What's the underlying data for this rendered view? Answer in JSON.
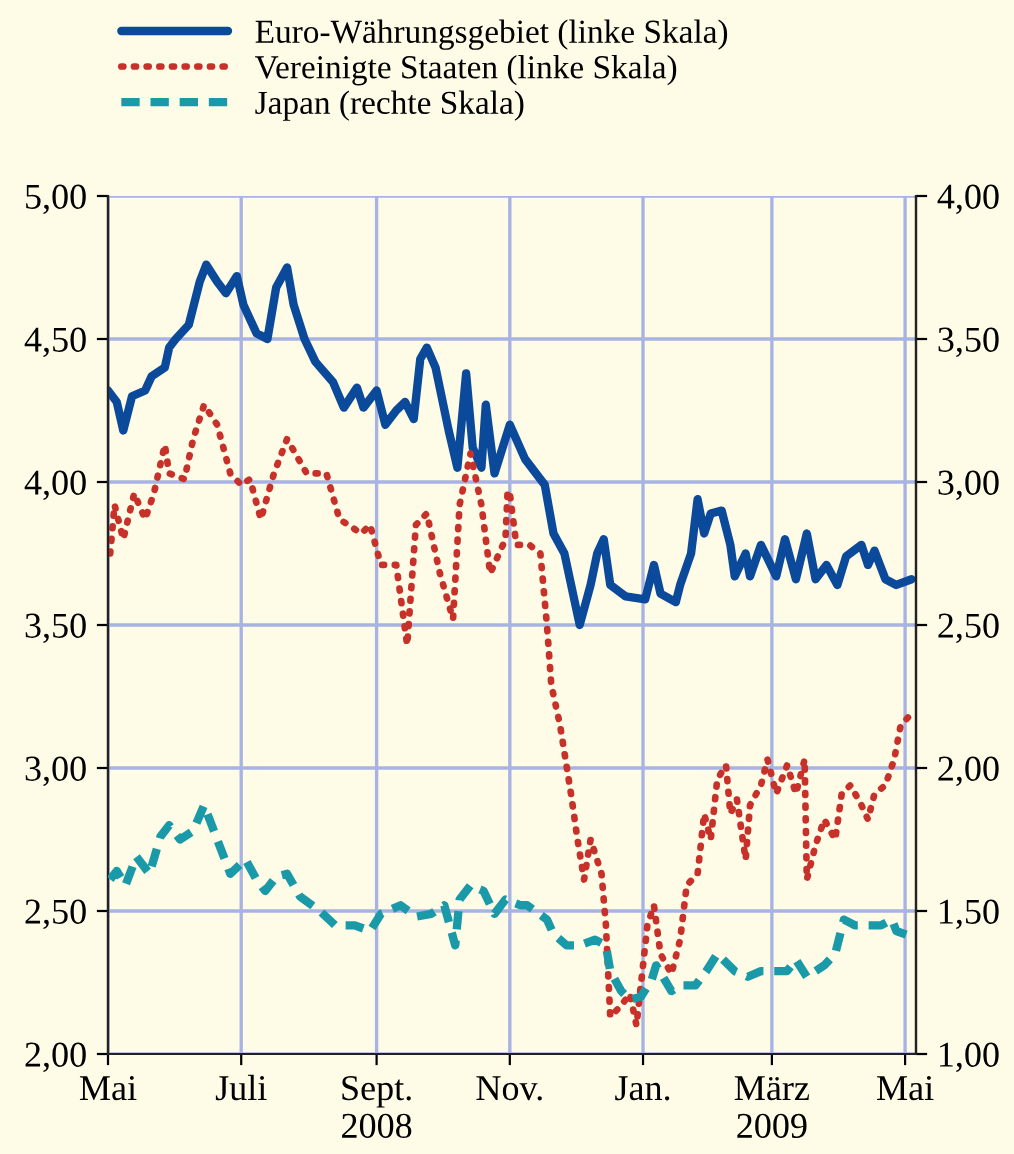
{
  "chart_data": {
    "type": "line",
    "xlim": [
      "2008-05-01",
      "2009-05-06"
    ],
    "xticks": [
      {
        "value": "2008-05-01",
        "label": "Mai"
      },
      {
        "value": "2008-07-01",
        "label": "Juli"
      },
      {
        "value": "2008-09-01",
        "label": "Sept.\n2008"
      },
      {
        "value": "2008-11-01",
        "label": "Nov."
      },
      {
        "value": "2009-01-01",
        "label": "Jan."
      },
      {
        "value": "2009-03-01",
        "label": "März\n2009"
      },
      {
        "value": "2009-05-01",
        "label": "Mai"
      }
    ],
    "ylim": [
      2.0,
      5.0
    ],
    "yticks": [
      {
        "value": 2.0,
        "label": "2,00"
      },
      {
        "value": 2.5,
        "label": "2,50"
      },
      {
        "value": 3.0,
        "label": "3,00"
      },
      {
        "value": 3.5,
        "label": "3,50"
      },
      {
        "value": 4.0,
        "label": "4,00"
      },
      {
        "value": 4.5,
        "label": "4,50"
      },
      {
        "value": 5.0,
        "label": "5,00"
      }
    ],
    "y2lim": [
      1.0,
      4.0
    ],
    "y2ticks": [
      {
        "value": 1.0,
        "label": "1,00"
      },
      {
        "value": 1.5,
        "label": "1,50"
      },
      {
        "value": 2.0,
        "label": "2,00"
      },
      {
        "value": 2.5,
        "label": "2,50"
      },
      {
        "value": 3.0,
        "label": "3,00"
      },
      {
        "value": 3.5,
        "label": "3,50"
      },
      {
        "value": 4.0,
        "label": "4,00"
      }
    ],
    "grid": true,
    "legend": "top",
    "series": [
      {
        "name": "Euro-Währungsgebiet (linke Skala)",
        "color": "#0b4a9b",
        "line_style": "solid",
        "x": [
          "2008-05-01",
          "2008-05-05",
          "2008-05-08",
          "2008-05-12",
          "2008-05-18",
          "2008-05-21",
          "2008-05-27",
          "2008-05-29",
          "2008-06-01",
          "2008-06-07",
          "2008-06-12",
          "2008-06-15",
          "2008-06-20",
          "2008-06-24",
          "2008-06-29",
          "2008-07-02",
          "2008-07-08",
          "2008-07-13",
          "2008-07-17",
          "2008-07-22",
          "2008-07-25",
          "2008-07-30",
          "2008-08-04",
          "2008-08-12",
          "2008-08-17",
          "2008-08-23",
          "2008-08-26",
          "2008-09-01",
          "2008-09-05",
          "2008-09-10",
          "2008-09-14",
          "2008-09-18",
          "2008-09-21",
          "2008-09-24",
          "2008-09-28",
          "2008-10-04",
          "2008-10-08",
          "2008-10-12",
          "2008-10-15",
          "2008-10-19",
          "2008-10-21",
          "2008-10-25",
          "2008-11-01",
          "2008-11-08",
          "2008-11-17",
          "2008-11-21",
          "2008-11-26",
          "2008-12-03",
          "2008-12-08",
          "2008-12-11",
          "2008-12-14",
          "2008-12-17",
          "2008-12-24",
          "2009-01-02",
          "2009-01-06",
          "2009-01-09",
          "2009-01-16",
          "2009-01-18",
          "2009-01-23",
          "2009-01-26",
          "2009-01-29",
          "2009-02-01",
          "2009-02-06",
          "2009-02-10",
          "2009-02-12",
          "2009-02-17",
          "2009-02-19",
          "2009-02-24",
          "2009-03-03",
          "2009-03-07",
          "2009-03-12",
          "2009-03-17",
          "2009-03-21",
          "2009-03-26",
          "2009-03-31",
          "2009-04-04",
          "2009-04-11",
          "2009-04-14",
          "2009-04-17",
          "2009-04-22",
          "2009-04-27",
          "2009-05-04"
        ],
        "values": [
          4.32,
          4.28,
          4.18,
          4.3,
          4.32,
          4.37,
          4.4,
          4.47,
          4.5,
          4.55,
          4.7,
          4.76,
          4.7,
          4.66,
          4.72,
          4.62,
          4.52,
          4.5,
          4.68,
          4.75,
          4.62,
          4.5,
          4.42,
          4.35,
          4.26,
          4.33,
          4.26,
          4.32,
          4.2,
          4.25,
          4.28,
          4.22,
          4.43,
          4.47,
          4.4,
          4.18,
          4.05,
          4.38,
          4.12,
          4.05,
          4.27,
          4.03,
          4.2,
          4.08,
          3.99,
          3.82,
          3.75,
          3.5,
          3.64,
          3.75,
          3.8,
          3.64,
          3.6,
          3.59,
          3.71,
          3.61,
          3.58,
          3.64,
          3.75,
          3.94,
          3.82,
          3.89,
          3.9,
          3.78,
          3.67,
          3.75,
          3.67,
          3.78,
          3.67,
          3.8,
          3.66,
          3.82,
          3.66,
          3.71,
          3.64,
          3.74,
          3.78,
          3.71,
          3.76,
          3.66,
          3.64,
          3.66
        ]
      },
      {
        "name": "Vereinigte Staaten (linke Skala)",
        "color": "#c8312a",
        "line_style": "dotted",
        "x": [
          "2008-05-02",
          "2008-05-04",
          "2008-05-08",
          "2008-05-13",
          "2008-05-18",
          "2008-05-22",
          "2008-05-27",
          "2008-05-29",
          "2008-06-05",
          "2008-06-09",
          "2008-06-14",
          "2008-06-20",
          "2008-06-26",
          "2008-07-01",
          "2008-07-05",
          "2008-07-10",
          "2008-07-16",
          "2008-07-22",
          "2008-07-31",
          "2008-08-09",
          "2008-08-15",
          "2008-08-25",
          "2008-08-29",
          "2008-09-03",
          "2008-09-10",
          "2008-09-15",
          "2008-09-19",
          "2008-09-24",
          "2008-09-30",
          "2008-10-06",
          "2008-10-09",
          "2008-10-14",
          "2008-10-19",
          "2008-10-23",
          "2008-10-30",
          "2008-10-31",
          "2008-11-01",
          "2008-11-04",
          "2008-11-10",
          "2008-11-15",
          "2008-11-18",
          "2008-11-20",
          "2008-11-24",
          "2008-11-29",
          "2008-12-02",
          "2008-12-05",
          "2008-12-08",
          "2008-12-13",
          "2008-12-15",
          "2008-12-17",
          "2008-12-22",
          "2008-12-26",
          "2008-12-29",
          "2009-01-03",
          "2009-01-06",
          "2009-01-09",
          "2009-01-14",
          "2009-01-18",
          "2009-01-21",
          "2009-01-26",
          "2009-01-29",
          "2009-02-01",
          "2009-02-04",
          "2009-02-08",
          "2009-02-10",
          "2009-02-13",
          "2009-02-17",
          "2009-02-19",
          "2009-02-24",
          "2009-02-27",
          "2009-03-03",
          "2009-03-08",
          "2009-03-12",
          "2009-03-16",
          "2009-03-17",
          "2009-03-21",
          "2009-03-25",
          "2009-03-30",
          "2009-04-02",
          "2009-04-06",
          "2009-04-11",
          "2009-04-14",
          "2009-04-17",
          "2009-04-22",
          "2009-04-26",
          "2009-04-29",
          "2009-05-04"
        ],
        "values": [
          3.75,
          3.92,
          3.8,
          3.96,
          3.87,
          3.96,
          4.13,
          4.03,
          4.01,
          4.15,
          4.27,
          4.2,
          4.03,
          3.99,
          4.01,
          3.87,
          4.03,
          4.15,
          4.03,
          4.03,
          3.87,
          3.82,
          3.85,
          3.71,
          3.71,
          3.43,
          3.85,
          3.89,
          3.68,
          3.52,
          3.92,
          4.1,
          3.92,
          3.68,
          3.8,
          3.97,
          3.96,
          3.78,
          3.78,
          3.75,
          3.5,
          3.29,
          3.15,
          2.91,
          2.75,
          2.61,
          2.75,
          2.63,
          2.45,
          2.13,
          2.17,
          2.21,
          2.1,
          2.45,
          2.52,
          2.35,
          2.28,
          2.4,
          2.59,
          2.63,
          2.84,
          2.75,
          2.96,
          3.01,
          2.84,
          2.89,
          2.68,
          2.87,
          2.94,
          3.03,
          2.91,
          3.01,
          2.91,
          3.03,
          2.61,
          2.73,
          2.82,
          2.75,
          2.91,
          2.94,
          2.87,
          2.82,
          2.91,
          2.94,
          3.03,
          3.15,
          3.19
        ]
      },
      {
        "name": "Japan (rechte Skala)",
        "color": "#1a9aa8",
        "line_style": "dashed",
        "axis": "y2",
        "x": [
          "2008-05-02",
          "2008-05-05",
          "2008-05-09",
          "2008-05-14",
          "2008-05-20",
          "2008-05-25",
          "2008-05-29",
          "2008-06-03",
          "2008-06-09",
          "2008-06-14",
          "2008-06-19",
          "2008-06-26",
          "2008-07-03",
          "2008-07-08",
          "2008-07-12",
          "2008-07-17",
          "2008-07-22",
          "2008-07-28",
          "2008-08-06",
          "2008-08-13",
          "2008-08-22",
          "2008-08-29",
          "2008-09-03",
          "2008-09-12",
          "2008-09-19",
          "2008-09-26",
          "2008-10-02",
          "2008-10-07",
          "2008-10-09",
          "2008-10-14",
          "2008-10-20",
          "2008-10-25",
          "2008-10-30",
          "2008-11-06",
          "2008-11-09",
          "2008-11-18",
          "2008-11-21",
          "2008-11-27",
          "2008-12-03",
          "2008-12-10",
          "2008-12-15",
          "2008-12-17",
          "2008-12-22",
          "2008-12-26",
          "2008-12-31",
          "2009-01-05",
          "2009-01-07",
          "2009-01-14",
          "2009-01-18",
          "2009-01-25",
          "2009-01-30",
          "2009-02-04",
          "2009-02-12",
          "2009-02-18",
          "2009-02-24",
          "2009-03-02",
          "2009-03-08",
          "2009-03-12",
          "2009-03-17",
          "2009-03-25",
          "2009-03-30",
          "2009-04-03",
          "2009-04-08",
          "2009-04-14",
          "2009-04-20",
          "2009-04-25",
          "2009-04-27",
          "2009-05-04"
        ],
        "values": [
          1.61,
          1.64,
          1.59,
          1.69,
          1.63,
          1.76,
          1.8,
          1.75,
          1.78,
          1.87,
          1.77,
          1.63,
          1.68,
          1.61,
          1.57,
          1.62,
          1.63,
          1.55,
          1.5,
          1.45,
          1.45,
          1.43,
          1.49,
          1.52,
          1.48,
          1.49,
          1.52,
          1.38,
          1.54,
          1.59,
          1.57,
          1.49,
          1.54,
          1.52,
          1.52,
          1.47,
          1.42,
          1.38,
          1.38,
          1.4,
          1.38,
          1.29,
          1.22,
          1.19,
          1.2,
          1.26,
          1.31,
          1.22,
          1.24,
          1.24,
          1.29,
          1.35,
          1.29,
          1.27,
          1.29,
          1.29,
          1.29,
          1.33,
          1.27,
          1.31,
          1.35,
          1.47,
          1.45,
          1.45,
          1.45,
          1.47,
          1.43,
          1.41
        ]
      }
    ]
  }
}
